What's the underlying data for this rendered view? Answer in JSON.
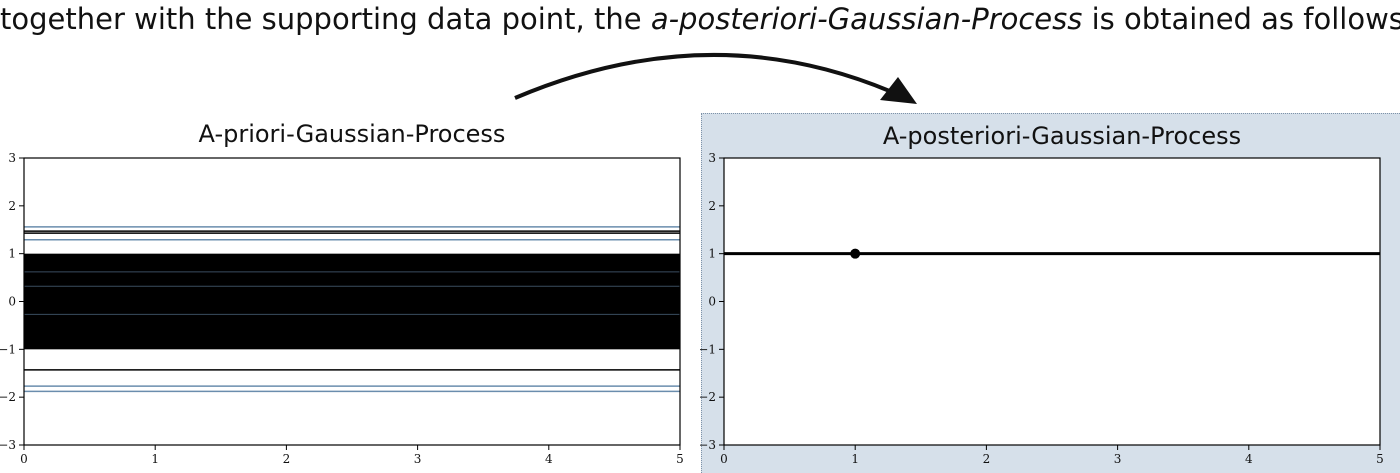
{
  "caption": {
    "before": "together with the supporting data point, the ",
    "emphasis": "a-posteriori-Gaussian-Process",
    "after": " is obtained as follows"
  },
  "arrow": {
    "color": "#111111"
  },
  "colors": {
    "line_dark": "#000000",
    "line_blue": "#6a8dad",
    "panel_highlight": "#d6e0ea",
    "axis": "#000000"
  },
  "chart_data": [
    {
      "type": "line",
      "title": "A-priori-Gaussian-Process",
      "xlabel": "",
      "ylabel": "",
      "xlim": [
        0,
        5
      ],
      "ylim": [
        -3,
        3
      ],
      "xticks": [
        0,
        1,
        2,
        3,
        4,
        5
      ],
      "yticks": [
        3,
        2,
        1,
        0,
        -1,
        -2,
        -3
      ],
      "grid": false,
      "band": {
        "y_low": -1,
        "y_high": 1,
        "color": "#000000"
      },
      "series": [
        {
          "y": 1.56,
          "color": "#6a8dad"
        },
        {
          "y": 1.47,
          "color": "#000000"
        },
        {
          "y": 1.43,
          "color": "#000000"
        },
        {
          "y": 1.29,
          "color": "#6a8dad"
        },
        {
          "y": 0.62,
          "color": "#6a8dad"
        },
        {
          "y": 0.32,
          "color": "#6a8dad"
        },
        {
          "y": -0.27,
          "color": "#6a8dad"
        },
        {
          "y": -1.43,
          "color": "#000000"
        },
        {
          "y": -1.77,
          "color": "#6a8dad"
        },
        {
          "y": -1.88,
          "color": "#6a8dad"
        }
      ]
    },
    {
      "type": "line",
      "title": "A-posteriori-Gaussian-Process",
      "xlabel": "",
      "ylabel": "",
      "xlim": [
        0,
        5
      ],
      "ylim": [
        -3,
        3
      ],
      "xticks": [
        0,
        1,
        2,
        3,
        4,
        5
      ],
      "yticks": [
        3,
        2,
        1,
        0,
        -1,
        -2,
        -3
      ],
      "grid": false,
      "series": [
        {
          "y": 1,
          "color": "#000000"
        }
      ],
      "points": [
        {
          "x": 1,
          "y": 1,
          "color": "#000000"
        }
      ]
    }
  ]
}
